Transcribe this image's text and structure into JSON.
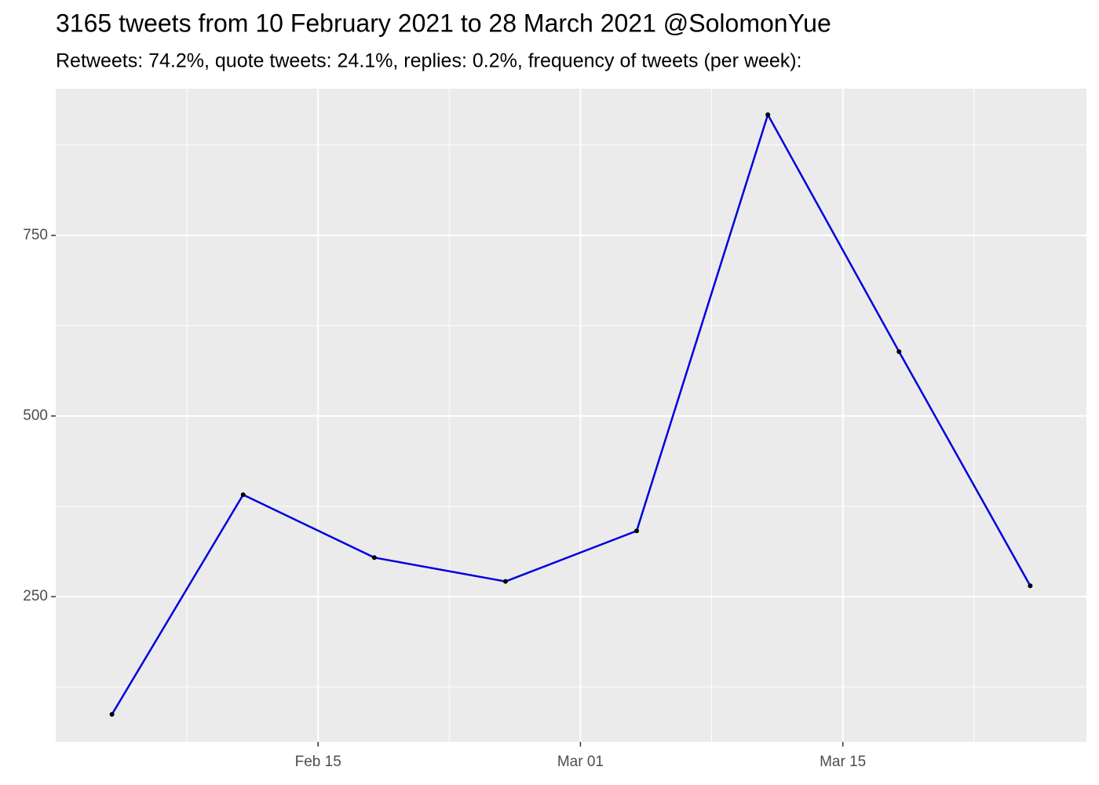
{
  "chart_data": {
    "type": "line",
    "title": "3165 tweets from 10 February 2021 to 28 March 2021 @SolomonYue",
    "subtitle": "Retweets: 74.2%, quote tweets: 24.1%, replies: 0.2%, frequency of tweets (per week):",
    "x": [
      "02-04",
      "02-11",
      "02-18",
      "02-25",
      "03-04",
      "03-11",
      "03-18",
      "03-25"
    ],
    "series": [
      {
        "color": "#0000dd",
        "values": [
          87,
          391,
          304,
          271,
          341,
          917,
          589,
          265
        ]
      }
    ],
    "xlim": [
      "02-01",
      "03-28"
    ],
    "xticks": [
      {
        "value": "02-15",
        "label": "Feb 15"
      },
      {
        "value": "03-01",
        "label": "Mar 01"
      },
      {
        "value": "03-15",
        "label": "Mar 15"
      }
    ],
    "ylim": [
      49,
      953
    ],
    "yticks": [
      250,
      500,
      750
    ],
    "grid": true,
    "minor_grid": true
  }
}
